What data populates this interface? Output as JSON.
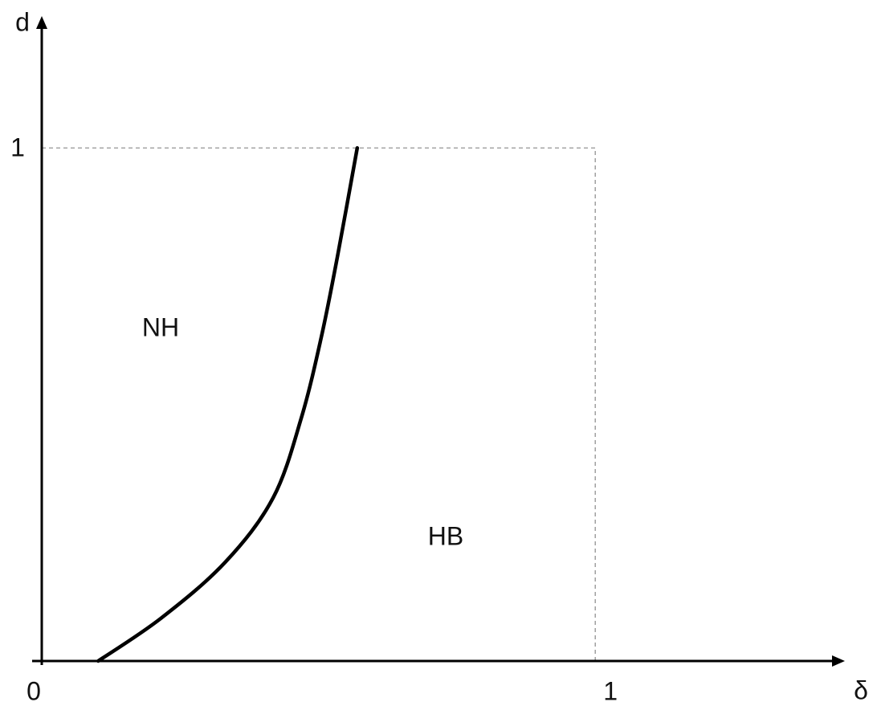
{
  "chart_data": {
    "type": "line",
    "x_label": "δ",
    "y_label": "d",
    "x": [
      0.102,
      0.215,
      0.331,
      0.418,
      0.469,
      0.505,
      0.534,
      0.57
    ],
    "values": [
      0,
      0.083,
      0.192,
      0.318,
      0.474,
      0.631,
      0.787,
      1
    ],
    "color": "#000000",
    "xlim": [
      0,
      1.451
    ],
    "ylim": [
      0,
      1.257
    ],
    "xticks": [
      0,
      1
    ],
    "yticks": [
      1
    ],
    "annotations": [
      "NH",
      "HB"
    ]
  }
}
